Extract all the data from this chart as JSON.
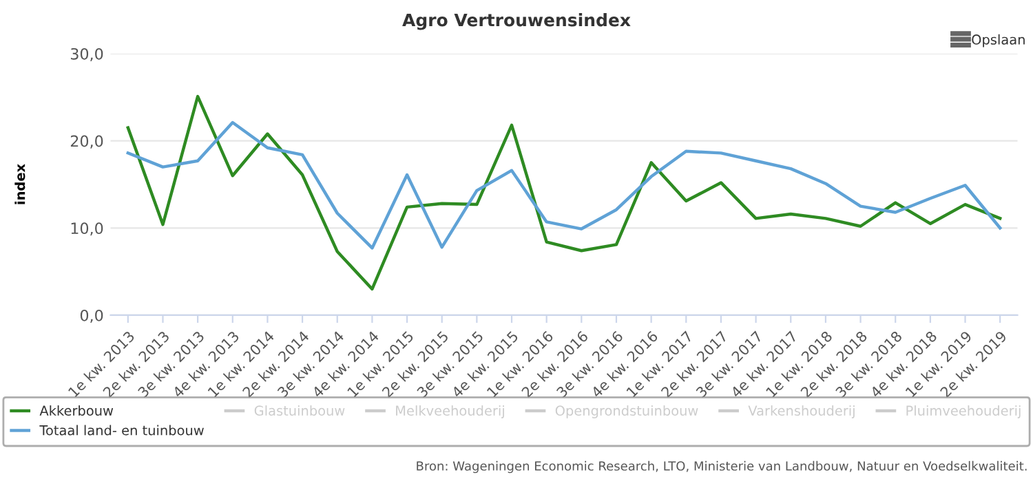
{
  "chart_data": {
    "type": "line",
    "title": "Agro Vertrouwensindex",
    "ylabel": "index",
    "categories": [
      "1e kw. 2013",
      "2e kw. 2013",
      "3e kw. 2013",
      "4e kw. 2013",
      "1e kw. 2014",
      "2e kw. 2014",
      "3e kw. 2014",
      "4e kw. 2014",
      "1e kw. 2015",
      "2e kw. 2015",
      "3e kw. 2015",
      "4e kw. 2015",
      "1e kw. 2016",
      "2e kw. 2016",
      "3e kw. 2016",
      "4e kw. 2016",
      "1e kw. 2017",
      "2e kw. 2017",
      "3e kw. 2017",
      "4e kw. 2017",
      "1e kw. 2018",
      "2e kw. 2018",
      "3e kw. 2018",
      "4e kw. 2018",
      "1e kw. 2019",
      "2e kw. 2019"
    ],
    "series": [
      {
        "name": "Akkerbouw",
        "color": "#2e8b22",
        "values": [
          21.5,
          10.4,
          25.1,
          16.0,
          20.8,
          16.1,
          7.3,
          3.0,
          12.4,
          12.8,
          12.7,
          21.8,
          8.4,
          7.4,
          8.1,
          17.5,
          13.1,
          15.2,
          11.1,
          11.6,
          11.1,
          10.2,
          12.9,
          10.5,
          12.7,
          11.1
        ]
      },
      {
        "name": "Totaal land- en tuinbouw",
        "color": "#5fa2d6",
        "values": [
          18.6,
          17.0,
          17.7,
          22.1,
          19.2,
          18.4,
          11.7,
          7.7,
          16.1,
          7.8,
          14.3,
          16.6,
          10.7,
          9.9,
          12.1,
          15.9,
          18.8,
          18.6,
          17.7,
          16.8,
          15.1,
          12.5,
          11.8,
          13.4,
          14.9,
          10.0
        ]
      },
      {
        "name": "Glastuinbouw",
        "color": "#cccccc",
        "values": [
          null,
          null,
          null,
          null,
          null,
          null,
          null,
          null,
          null,
          null,
          null,
          null,
          null,
          null,
          null,
          null,
          null,
          null,
          null,
          null,
          null,
          null,
          null,
          null,
          null,
          null
        ]
      },
      {
        "name": "Melkveehouderij",
        "color": "#cccccc",
        "values": [
          null,
          null,
          null,
          null,
          null,
          null,
          null,
          null,
          null,
          null,
          null,
          null,
          null,
          null,
          null,
          null,
          null,
          null,
          null,
          null,
          null,
          null,
          null,
          null,
          null,
          null
        ]
      },
      {
        "name": "Opengrondstuinbouw",
        "color": "#cccccc",
        "values": [
          null,
          null,
          null,
          null,
          null,
          null,
          null,
          null,
          null,
          null,
          null,
          null,
          null,
          null,
          null,
          null,
          null,
          null,
          null,
          null,
          null,
          null,
          null,
          null,
          null,
          null
        ]
      },
      {
        "name": "Varkenshouderij",
        "color": "#cccccc",
        "values": [
          null,
          null,
          null,
          null,
          null,
          null,
          null,
          null,
          null,
          null,
          null,
          null,
          null,
          null,
          null,
          null,
          null,
          null,
          null,
          null,
          null,
          null,
          null,
          null,
          null,
          null
        ]
      },
      {
        "name": "Pluimveehouderij",
        "color": "#cccccc",
        "values": [
          null,
          null,
          null,
          null,
          null,
          null,
          null,
          null,
          null,
          null,
          null,
          null,
          null,
          null,
          null,
          null,
          null,
          null,
          null,
          null,
          null,
          null,
          null,
          null,
          null,
          null
        ]
      }
    ],
    "ylim": [
      0,
      30
    ],
    "yticks": [
      {
        "value": 0,
        "label": "0,0"
      },
      {
        "value": 10,
        "label": "10,0"
      },
      {
        "value": 20,
        "label": "20,0"
      },
      {
        "value": 30,
        "label": "30,0"
      }
    ],
    "grid": "y",
    "legend": "bottom",
    "marker": "none",
    "line_style": "solid",
    "annotations": [
      "Opslaan",
      "Bron: Wageningen Economic Research, LTO, Ministerie van Landbouw, Natuur en Voedselkwaliteit."
    ]
  }
}
